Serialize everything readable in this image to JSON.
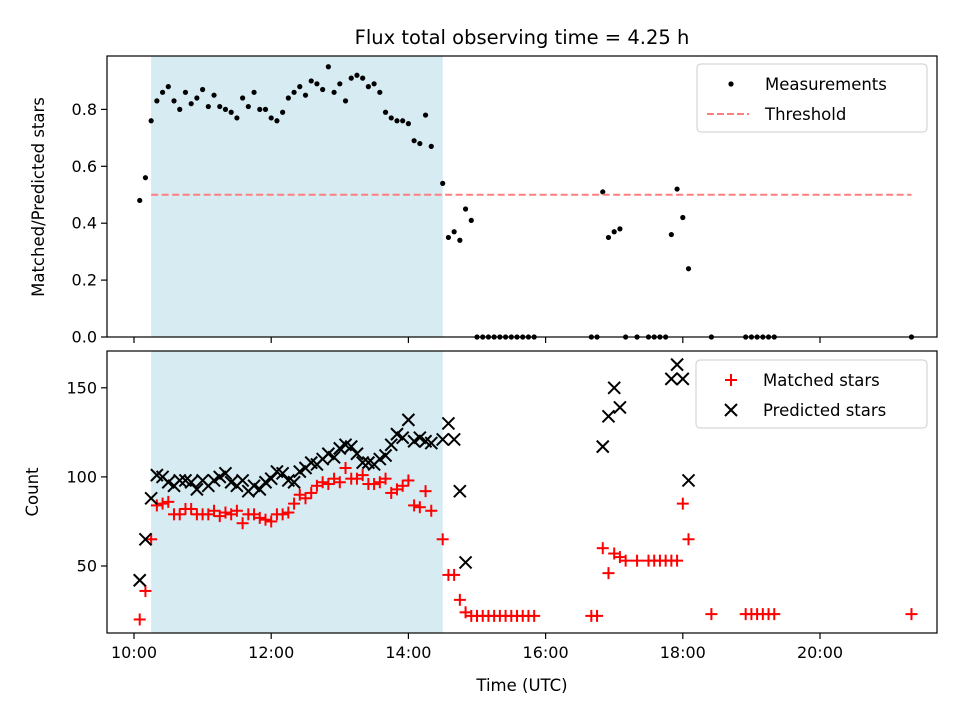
{
  "chart_data": [
    {
      "type": "scatter",
      "title": "Flux total observing time = 4.25 h",
      "ylabel": "Matched/Predicted stars",
      "xlabel": "",
      "xlim": [
        "10:00",
        "22:00"
      ],
      "ylim": [
        0,
        1.0
      ],
      "yticks": [
        "0.0",
        "0.2",
        "0.4",
        "0.6",
        "0.8"
      ],
      "shaded_span": [
        "10:15",
        "14:30"
      ],
      "legend_position": "top-right",
      "series": [
        {
          "name": "Measurements",
          "marker": "dot",
          "color": "#000000",
          "x": [
            "10:05",
            "10:10",
            "10:15",
            "10:20",
            "10:25",
            "10:30",
            "10:35",
            "10:40",
            "10:45",
            "10:50",
            "10:55",
            "11:00",
            "11:05",
            "11:10",
            "11:15",
            "11:20",
            "11:25",
            "11:30",
            "11:35",
            "11:40",
            "11:45",
            "11:50",
            "11:55",
            "12:00",
            "12:05",
            "12:10",
            "12:15",
            "12:20",
            "12:25",
            "12:30",
            "12:35",
            "12:40",
            "12:45",
            "12:50",
            "12:55",
            "13:00",
            "13:05",
            "13:10",
            "13:15",
            "13:20",
            "13:25",
            "13:30",
            "13:35",
            "13:40",
            "13:45",
            "13:50",
            "13:55",
            "14:00",
            "14:05",
            "14:10",
            "14:15",
            "14:20",
            "14:30",
            "14:35",
            "14:40",
            "14:45",
            "14:50",
            "14:55",
            "15:00",
            "15:05",
            "15:10",
            "15:15",
            "15:20",
            "15:25",
            "15:30",
            "15:35",
            "15:40",
            "15:45",
            "15:50",
            "16:40",
            "16:45",
            "16:50",
            "16:55",
            "17:00",
            "17:05",
            "17:10",
            "17:20",
            "17:30",
            "17:35",
            "17:40",
            "17:45",
            "17:50",
            "17:55",
            "18:00",
            "18:05",
            "18:25",
            "18:55",
            "19:00",
            "19:05",
            "19:10",
            "19:15",
            "19:20",
            "21:20"
          ],
          "y": [
            0.48,
            0.56,
            0.76,
            0.83,
            0.86,
            0.88,
            0.83,
            0.8,
            0.86,
            0.82,
            0.84,
            0.87,
            0.81,
            0.85,
            0.81,
            0.8,
            0.79,
            0.77,
            0.84,
            0.81,
            0.86,
            0.8,
            0.8,
            0.77,
            0.76,
            0.79,
            0.84,
            0.86,
            0.88,
            0.85,
            0.9,
            0.89,
            0.87,
            0.95,
            0.86,
            0.89,
            0.83,
            0.91,
            0.92,
            0.91,
            0.88,
            0.89,
            0.86,
            0.79,
            0.77,
            0.76,
            0.76,
            0.75,
            0.69,
            0.68,
            0.78,
            0.67,
            0.54,
            0.35,
            0.37,
            0.34,
            0.45,
            0.41,
            0.0,
            0.0,
            0.0,
            0.0,
            0.0,
            0.0,
            0.0,
            0.0,
            0.0,
            0.0,
            0.0,
            0.0,
            0.0,
            0.51,
            0.35,
            0.37,
            0.38,
            0.0,
            0.0,
            0.0,
            0.0,
            0.0,
            0.0,
            0.36,
            0.52,
            0.42,
            0.24,
            0.0,
            0.0,
            0.0,
            0.0,
            0.0,
            0.0,
            0.0,
            0.0
          ]
        },
        {
          "name": "Threshold",
          "marker": "dashed-line",
          "color": "#ff7f7f",
          "x": [
            "10:15",
            "21:20"
          ],
          "y": [
            0.5,
            0.5
          ]
        }
      ]
    },
    {
      "type": "scatter",
      "title": "",
      "ylabel": "Count",
      "xlabel": "Time (UTC)",
      "xlim": [
        "10:00",
        "22:00"
      ],
      "ylim": [
        15,
        170
      ],
      "yticks": [
        "50",
        "100",
        "150"
      ],
      "xticks": [
        "10:00",
        "12:00",
        "14:00",
        "16:00",
        "18:00",
        "20:00"
      ],
      "shaded_span": [
        "10:15",
        "14:30"
      ],
      "legend_position": "top-right",
      "series": [
        {
          "name": "Matched stars",
          "marker": "plus",
          "color": "#ff0000",
          "x": [
            "10:05",
            "10:10",
            "10:15",
            "10:20",
            "10:25",
            "10:30",
            "10:35",
            "10:40",
            "10:45",
            "10:50",
            "10:55",
            "11:00",
            "11:05",
            "11:10",
            "11:15",
            "11:20",
            "11:25",
            "11:30",
            "11:35",
            "11:40",
            "11:45",
            "11:50",
            "11:55",
            "12:00",
            "12:05",
            "12:10",
            "12:15",
            "12:20",
            "12:25",
            "12:30",
            "12:35",
            "12:40",
            "12:45",
            "12:50",
            "12:55",
            "13:00",
            "13:05",
            "13:10",
            "13:15",
            "13:20",
            "13:25",
            "13:30",
            "13:35",
            "13:40",
            "13:45",
            "13:50",
            "13:55",
            "14:00",
            "14:05",
            "14:10",
            "14:15",
            "14:20",
            "14:30",
            "14:35",
            "14:40",
            "14:45",
            "14:50",
            "14:55",
            "15:00",
            "15:05",
            "15:10",
            "15:15",
            "15:20",
            "15:25",
            "15:30",
            "15:35",
            "15:40",
            "15:45",
            "15:50",
            "16:40",
            "16:45",
            "16:50",
            "16:55",
            "17:00",
            "17:05",
            "17:10",
            "17:20",
            "17:30",
            "17:35",
            "17:40",
            "17:45",
            "17:50",
            "17:55",
            "18:00",
            "18:05",
            "18:25",
            "18:55",
            "19:00",
            "19:05",
            "19:10",
            "19:15",
            "19:20",
            "21:20"
          ],
          "y": [
            20,
            36,
            65,
            84,
            85,
            86,
            79,
            79,
            82,
            82,
            79,
            79,
            79,
            81,
            78,
            80,
            79,
            81,
            74,
            79,
            79,
            77,
            76,
            75,
            79,
            79,
            80,
            85,
            90,
            88,
            91,
            95,
            97,
            96,
            99,
            97,
            105,
            99,
            99,
            101,
            96,
            96,
            97,
            99,
            91,
            93,
            95,
            98,
            84,
            83,
            92,
            81,
            65,
            45,
            45,
            31,
            24,
            22,
            22,
            22,
            22,
            22,
            22,
            22,
            22,
            22,
            22,
            22,
            22,
            22,
            22,
            60,
            46,
            57,
            55,
            53,
            53,
            53,
            53,
            53,
            53,
            53,
            53,
            85,
            65,
            23,
            23,
            23,
            23,
            23,
            23,
            23,
            23
          ]
        },
        {
          "name": "Predicted stars",
          "marker": "x",
          "color": "#000000",
          "x": [
            "10:05",
            "10:10",
            "10:15",
            "10:20",
            "10:25",
            "10:30",
            "10:35",
            "10:40",
            "10:45",
            "10:50",
            "10:55",
            "11:00",
            "11:05",
            "11:10",
            "11:15",
            "11:20",
            "11:25",
            "11:30",
            "11:35",
            "11:40",
            "11:45",
            "11:50",
            "11:55",
            "12:00",
            "12:05",
            "12:10",
            "12:15",
            "12:20",
            "12:25",
            "12:30",
            "12:35",
            "12:40",
            "12:45",
            "12:50",
            "12:55",
            "13:00",
            "13:05",
            "13:10",
            "13:15",
            "13:20",
            "13:25",
            "13:30",
            "13:35",
            "13:40",
            "13:45",
            "13:50",
            "13:55",
            "14:00",
            "14:05",
            "14:10",
            "14:15",
            "14:20",
            "14:30",
            "14:35",
            "14:40",
            "14:45",
            "14:50",
            "16:50",
            "16:55",
            "17:00",
            "17:05",
            "17:50",
            "17:55",
            "18:00",
            "18:05"
          ],
          "y": [
            42,
            65,
            88,
            101,
            100,
            97,
            95,
            98,
            98,
            97,
            93,
            98,
            95,
            98,
            100,
            102,
            97,
            95,
            98,
            92,
            95,
            93,
            97,
            99,
            103,
            102,
            98,
            97,
            103,
            105,
            108,
            107,
            110,
            113,
            111,
            116,
            118,
            117,
            113,
            108,
            108,
            107,
            110,
            112,
            118,
            124,
            122,
            132,
            120,
            122,
            120,
            119,
            121,
            130,
            121,
            92,
            52,
            117,
            134,
            150,
            139,
            155,
            163,
            155,
            98
          ]
        }
      ]
    }
  ]
}
